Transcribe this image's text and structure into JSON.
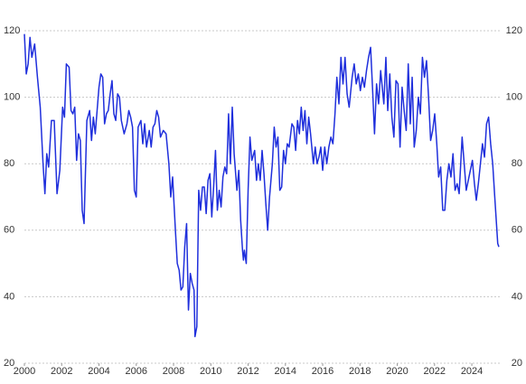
{
  "chart_data": {
    "type": "line",
    "x": [
      2000.0,
      2000.1,
      2000.2,
      2000.3,
      2000.4,
      2000.55,
      2000.7,
      2000.85,
      2001.0,
      2001.1,
      2001.2,
      2001.3,
      2001.45,
      2001.6,
      2001.75,
      2001.9,
      2002.05,
      2002.15,
      2002.25,
      2002.4,
      2002.5,
      2002.6,
      2002.7,
      2002.8,
      2002.9,
      2003.0,
      2003.1,
      2003.2,
      2003.35,
      2003.5,
      2003.6,
      2003.7,
      2003.8,
      2003.9,
      2004.0,
      2004.1,
      2004.2,
      2004.3,
      2004.4,
      2004.5,
      2004.6,
      2004.7,
      2004.8,
      2004.9,
      2005.0,
      2005.1,
      2005.2,
      2005.35,
      2005.5,
      2005.6,
      2005.7,
      2005.8,
      2005.9,
      2006.0,
      2006.1,
      2006.25,
      2006.35,
      2006.45,
      2006.55,
      2006.7,
      2006.8,
      2006.9,
      2007.0,
      2007.1,
      2007.2,
      2007.3,
      2007.45,
      2007.6,
      2007.75,
      2007.85,
      2007.95,
      2008.1,
      2008.2,
      2008.3,
      2008.4,
      2008.5,
      2008.6,
      2008.7,
      2008.8,
      2008.9,
      2009.0,
      2009.1,
      2009.15,
      2009.25,
      2009.35,
      2009.45,
      2009.55,
      2009.65,
      2009.75,
      2009.85,
      2009.95,
      2010.05,
      2010.15,
      2010.25,
      2010.35,
      2010.45,
      2010.55,
      2010.65,
      2010.75,
      2010.85,
      2010.95,
      2011.05,
      2011.15,
      2011.25,
      2011.4,
      2011.5,
      2011.6,
      2011.7,
      2011.75,
      2011.8,
      2011.9,
      2012.0,
      2012.1,
      2012.2,
      2012.35,
      2012.45,
      2012.55,
      2012.65,
      2012.75,
      2012.85,
      2012.95,
      2013.05,
      2013.15,
      2013.3,
      2013.4,
      2013.5,
      2013.6,
      2013.7,
      2013.8,
      2013.9,
      2014.0,
      2014.1,
      2014.2,
      2014.35,
      2014.45,
      2014.55,
      2014.65,
      2014.75,
      2014.85,
      2014.95,
      2015.05,
      2015.15,
      2015.25,
      2015.35,
      2015.5,
      2015.6,
      2015.7,
      2015.8,
      2015.9,
      2016.0,
      2016.11,
      2016.22,
      2016.33,
      2016.44,
      2016.55,
      2016.66,
      2016.76,
      2016.87,
      2016.98,
      2017.09,
      2017.2,
      2017.31,
      2017.42,
      2017.58,
      2017.69,
      2017.8,
      2017.91,
      2018.02,
      2018.13,
      2018.24,
      2018.35,
      2018.46,
      2018.57,
      2018.68,
      2018.78,
      2018.89,
      2019.0,
      2019.11,
      2019.28,
      2019.39,
      2019.49,
      2019.6,
      2019.71,
      2019.82,
      2019.93,
      2020.04,
      2020.15,
      2020.26,
      2020.37,
      2020.48,
      2020.59,
      2020.7,
      2020.8,
      2020.91,
      2021.02,
      2021.13,
      2021.24,
      2021.35,
      2021.46,
      2021.57,
      2021.68,
      2021.79,
      2021.9,
      2022.01,
      2022.12,
      2022.22,
      2022.33,
      2022.44,
      2022.55,
      2022.66,
      2022.77,
      2022.88,
      2022.99,
      2023.1,
      2023.21,
      2023.32,
      2023.48,
      2023.59,
      2023.7,
      2023.81,
      2023.92,
      2024.03,
      2024.14,
      2024.24,
      2024.35,
      2024.46,
      2024.57,
      2024.68,
      2024.79,
      2024.9,
      2025.01,
      2025.12,
      2025.23,
      2025.39,
      2025.45
    ],
    "values": [
      119,
      107,
      110,
      118,
      112,
      116,
      106,
      97,
      80,
      71,
      83,
      79,
      93,
      93,
      71,
      78,
      97,
      94,
      110,
      109,
      96,
      95,
      97,
      81,
      89,
      87,
      66,
      62,
      93,
      96,
      87,
      94,
      89,
      96,
      103,
      107,
      106,
      92,
      95,
      96,
      101,
      105,
      95,
      93,
      101,
      100,
      93,
      89,
      92,
      96,
      94,
      91,
      72,
      70,
      91,
      93,
      86,
      92,
      85,
      90,
      85,
      91,
      92,
      96,
      94,
      88,
      90,
      89,
      80,
      70,
      76,
      60,
      50,
      48,
      42,
      43,
      55,
      62,
      36,
      47,
      44,
      42,
      28,
      31,
      72,
      66,
      73,
      73,
      65,
      75,
      77,
      64,
      73,
      84,
      66,
      72,
      67,
      76,
      79,
      77,
      95,
      80,
      97,
      83,
      72,
      78,
      63,
      54,
      51,
      54,
      50,
      72,
      88,
      81,
      84,
      75,
      80,
      75,
      84,
      77,
      68,
      60,
      70,
      80,
      91,
      85,
      88,
      72,
      73,
      84,
      80,
      86,
      85,
      92,
      91,
      84,
      93,
      89,
      97,
      90,
      96,
      86,
      94,
      89,
      80,
      85,
      80,
      82,
      85,
      78,
      85,
      80,
      85,
      88,
      86,
      95,
      106,
      98,
      112,
      104,
      112,
      101,
      97,
      106,
      110,
      104,
      107,
      102,
      106,
      103,
      108,
      112,
      115,
      102,
      89,
      104,
      98,
      108,
      98,
      112,
      96,
      107,
      94,
      88,
      105,
      104,
      85,
      103,
      96,
      90,
      110,
      92,
      106,
      85,
      90,
      100,
      95,
      112,
      106,
      111,
      100,
      87,
      90,
      95,
      86,
      76,
      79,
      66,
      66,
      75,
      80,
      76,
      83,
      72,
      74,
      71,
      88,
      80,
      72,
      75,
      78,
      81,
      74,
      69,
      74,
      80,
      86,
      82,
      92,
      94,
      86,
      80,
      70,
      56,
      55
    ],
    "color": "#1f2fdc",
    "xlim": [
      2000,
      2025.5
    ],
    "xticks": [
      2000,
      2002,
      2004,
      2006,
      2008,
      2010,
      2012,
      2014,
      2016,
      2018,
      2020,
      2022,
      2024
    ],
    "ylim": [
      20,
      120
    ],
    "yticks": [
      20,
      40,
      60,
      80,
      100,
      120
    ],
    "y2lim": [
      20,
      120
    ],
    "y2ticks": [
      20,
      40,
      60,
      80,
      100,
      120
    ],
    "grid": true
  }
}
